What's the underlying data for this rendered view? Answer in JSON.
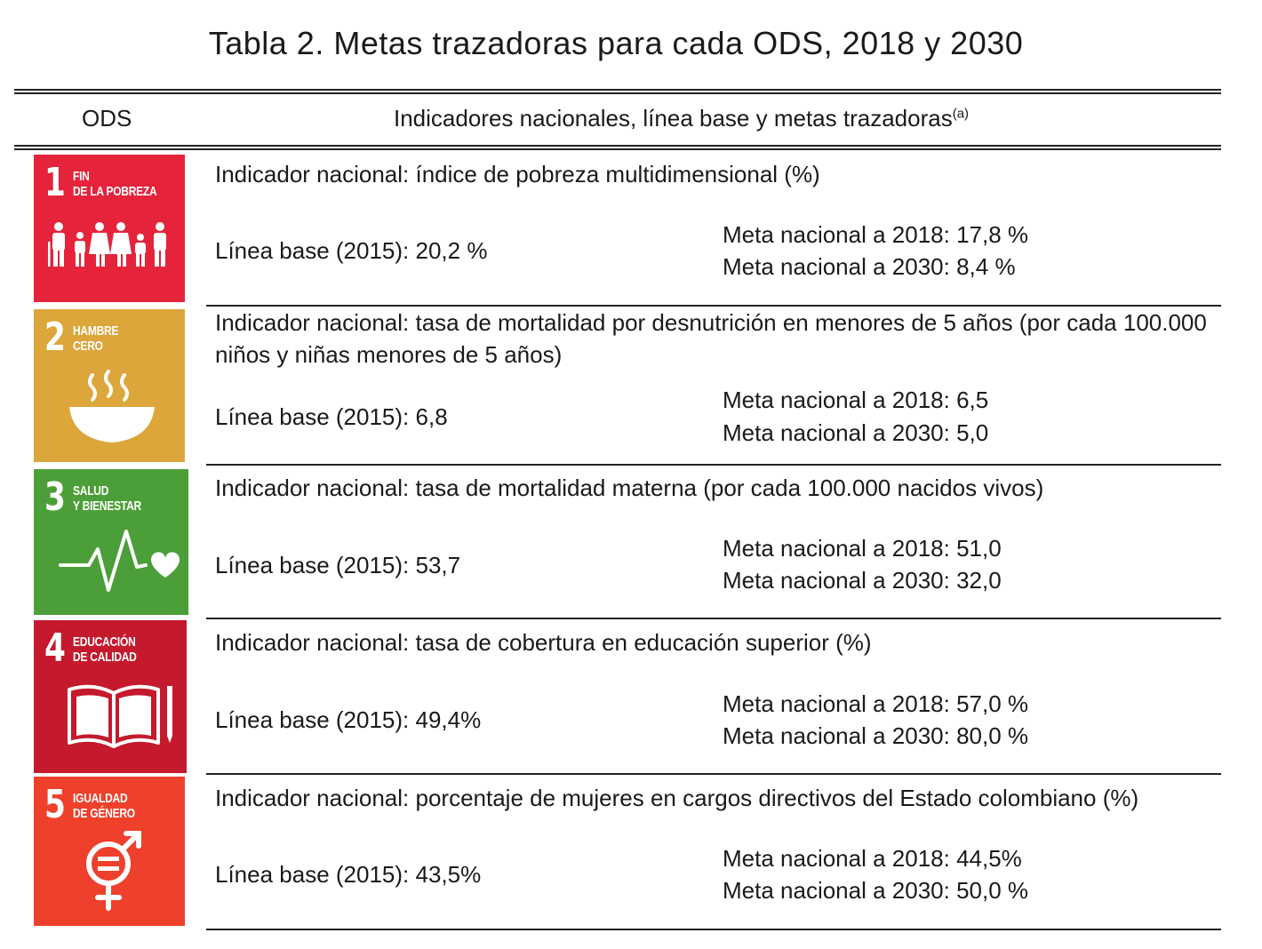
{
  "title": "Tabla 2. Metas trazadoras para cada ODS, 2018 y 2030",
  "header": {
    "col1": "ODS",
    "col2": "Indicadores nacionales, línea base y metas trazadoras",
    "col2_note": "(a)"
  },
  "rows": [
    {
      "goal_number": "1",
      "goal_name": "Fin\nde la pobreza",
      "color": "#E5243B",
      "icon": "family-icon",
      "indicator_label": "Indicador nacional:",
      "indicator_text": " índice de pobreza multidimensional (%)",
      "baseline_label": "Línea base (2015):",
      "baseline_value": " 20,2 %",
      "meta2018_label": "Meta nacional a 2018:",
      "meta2018_value": " 17,8 %",
      "meta2030_label": "Meta nacional a 2030:",
      "meta2030_value": " 8,4 %"
    },
    {
      "goal_number": "2",
      "goal_name": "Hambre\ncero",
      "color": "#DDA63A",
      "icon": "bowl-icon",
      "indicator_label": "Indicador nacional:",
      "indicator_text": " tasa de mortalidad por desnutrición en menores de 5 años (por cada 100.000 niños y niñas menores de 5 años)",
      "baseline_label": "Línea base (2015):",
      "baseline_value": " 6,8",
      "meta2018_label": "Meta nacional a 2018:",
      "meta2018_value": " 6,5",
      "meta2030_label": "Meta nacional a 2030:",
      "meta2030_value": " 5,0"
    },
    {
      "goal_number": "3",
      "goal_name": "Salud\ny bienestar",
      "color": "#4C9F38",
      "icon": "heartbeat-icon",
      "indicator_label": "Indicador nacional:",
      "indicator_text": " tasa de mortalidad materna (por cada 100.000 nacidos vivos)",
      "baseline_label": "Línea base (2015):",
      "baseline_value": " 53,7",
      "meta2018_label": "Meta nacional a 2018:",
      "meta2018_value": " 51,0",
      "meta2030_label": "Meta nacional a 2030:",
      "meta2030_value": " 32,0"
    },
    {
      "goal_number": "4",
      "goal_name": "Educación\nde calidad",
      "color": "#C5192D",
      "icon": "book-pencil-icon",
      "indicator_label": "Indicador nacional:",
      "indicator_text": " tasa de cobertura en educación superior (%)",
      "baseline_label": "Línea base (2015):",
      "baseline_value": " 49,4%",
      "meta2018_label": "Meta nacional a 2018:",
      "meta2018_value": " 57,0 %",
      "meta2030_label": "Meta nacional a 2030:",
      "meta2030_value": " 80,0 %"
    },
    {
      "goal_number": "5",
      "goal_name": "Igualdad\nde género",
      "color": "#EF402B",
      "icon": "gender-equality-icon",
      "indicator_label": "Indicador nacional:",
      "indicator_text": " porcentaje de mujeres en cargos directivos del Estado colombiano (%)",
      "baseline_label": "Línea base (2015):",
      "baseline_value": " 43,5%",
      "meta2018_label": "Meta nacional a 2018:",
      "meta2018_value": " 44,5%",
      "meta2030_label": "Meta nacional a 2030:",
      "meta2030_value": " 50,0 %"
    }
  ]
}
